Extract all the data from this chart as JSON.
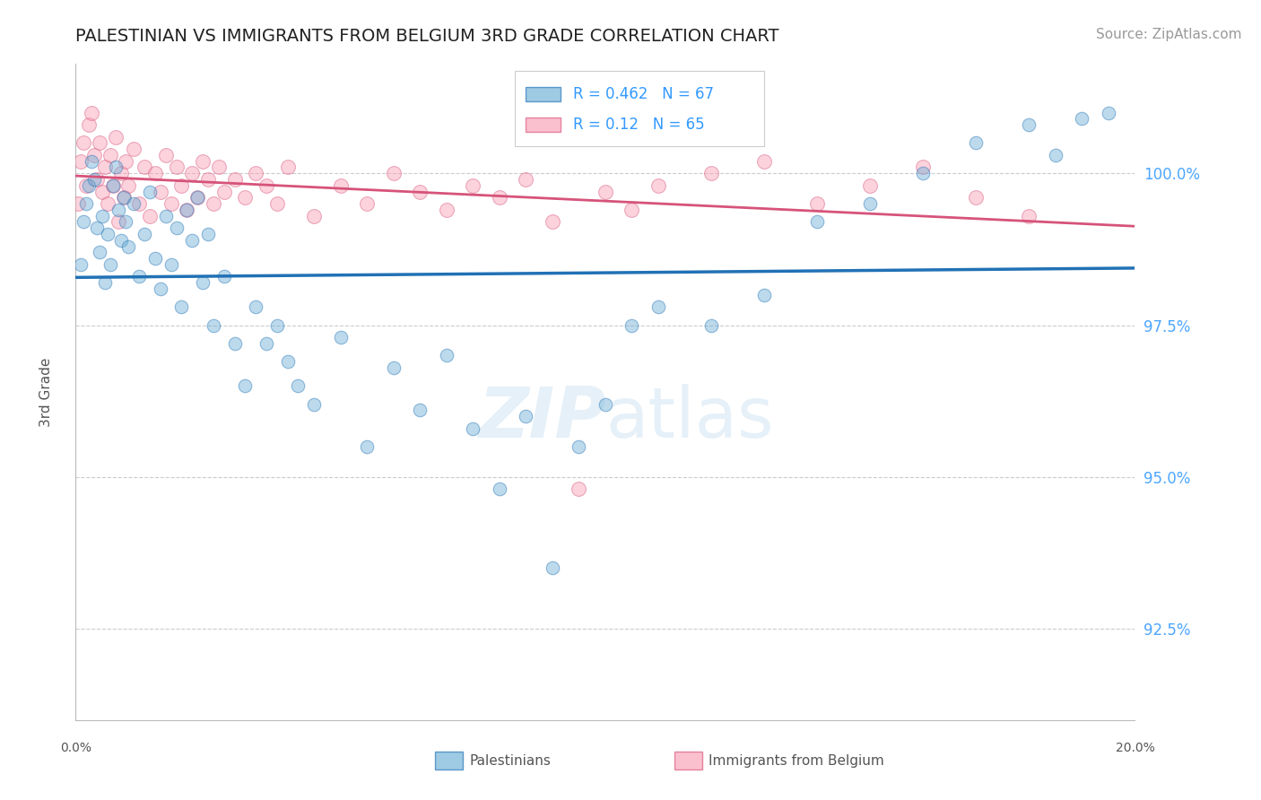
{
  "title": "PALESTINIAN VS IMMIGRANTS FROM BELGIUM 3RD GRADE CORRELATION CHART",
  "source": "Source: ZipAtlas.com",
  "ylabel": "3rd Grade",
  "yticks": [
    92.5,
    95.0,
    97.5,
    100.0
  ],
  "ytick_labels": [
    "92.5%",
    "95.0%",
    "97.5%",
    "100.0%"
  ],
  "xlim": [
    0.0,
    20.0
  ],
  "ylim": [
    91.0,
    101.8
  ],
  "blue_R": 0.462,
  "blue_N": 67,
  "pink_R": 0.12,
  "pink_N": 65,
  "blue_color": "#6baed6",
  "pink_color": "#fa9fb5",
  "blue_line_color": "#2171b5",
  "pink_line_color": "#d6537a",
  "title_color": "#222222",
  "title_fontsize": 14,
  "source_color": "#999999",
  "source_fontsize": 11,
  "axis_label_color": "#555555",
  "ytick_color": "#4da6ff",
  "legend_text_color": "#3399ff",
  "background_color": "#ffffff",
  "grid_color": "#cccccc",
  "watermark_color": "#c8dff0",
  "watermark_alpha": 0.45,
  "blue_x": [
    0.1,
    0.15,
    0.2,
    0.25,
    0.3,
    0.35,
    0.4,
    0.45,
    0.5,
    0.55,
    0.6,
    0.65,
    0.7,
    0.75,
    0.8,
    0.85,
    0.9,
    0.95,
    1.0,
    1.1,
    1.2,
    1.3,
    1.4,
    1.5,
    1.6,
    1.7,
    1.8,
    1.9,
    2.0,
    2.1,
    2.2,
    2.3,
    2.4,
    2.5,
    2.6,
    2.8,
    3.0,
    3.2,
    3.4,
    3.6,
    3.8,
    4.0,
    4.2,
    4.5,
    5.0,
    5.5,
    6.0,
    6.5,
    7.0,
    7.5,
    8.0,
    8.5,
    9.0,
    9.5,
    10.0,
    10.5,
    11.0,
    12.0,
    13.0,
    14.0,
    15.0,
    16.0,
    17.0,
    18.0,
    18.5,
    19.0,
    19.5
  ],
  "blue_y": [
    98.5,
    99.2,
    99.5,
    99.8,
    100.2,
    99.9,
    99.1,
    98.7,
    99.3,
    98.2,
    99.0,
    98.5,
    99.8,
    100.1,
    99.4,
    98.9,
    99.6,
    99.2,
    98.8,
    99.5,
    98.3,
    99.0,
    99.7,
    98.6,
    98.1,
    99.3,
    98.5,
    99.1,
    97.8,
    99.4,
    98.9,
    99.6,
    98.2,
    99.0,
    97.5,
    98.3,
    97.2,
    96.5,
    97.8,
    97.2,
    97.5,
    96.9,
    96.5,
    96.2,
    97.3,
    95.5,
    96.8,
    96.1,
    97.0,
    95.8,
    94.8,
    96.0,
    93.5,
    95.5,
    96.2,
    97.5,
    97.8,
    97.5,
    98.0,
    99.2,
    99.5,
    100.0,
    100.5,
    100.8,
    100.3,
    100.9,
    101.0
  ],
  "pink_x": [
    0.05,
    0.1,
    0.15,
    0.2,
    0.25,
    0.3,
    0.35,
    0.4,
    0.45,
    0.5,
    0.55,
    0.6,
    0.65,
    0.7,
    0.75,
    0.8,
    0.85,
    0.9,
    0.95,
    1.0,
    1.1,
    1.2,
    1.3,
    1.4,
    1.5,
    1.6,
    1.7,
    1.8,
    1.9,
    2.0,
    2.1,
    2.2,
    2.3,
    2.4,
    2.5,
    2.6,
    2.7,
    2.8,
    3.0,
    3.2,
    3.4,
    3.6,
    3.8,
    4.0,
    4.5,
    5.0,
    5.5,
    6.0,
    6.5,
    7.0,
    7.5,
    8.0,
    8.5,
    9.0,
    9.5,
    10.0,
    10.5,
    11.0,
    12.0,
    13.0,
    14.0,
    15.0,
    16.0,
    17.0,
    18.0
  ],
  "pink_y": [
    99.5,
    100.2,
    100.5,
    99.8,
    100.8,
    101.0,
    100.3,
    99.9,
    100.5,
    99.7,
    100.1,
    99.5,
    100.3,
    99.8,
    100.6,
    99.2,
    100.0,
    99.6,
    100.2,
    99.8,
    100.4,
    99.5,
    100.1,
    99.3,
    100.0,
    99.7,
    100.3,
    99.5,
    100.1,
    99.8,
    99.4,
    100.0,
    99.6,
    100.2,
    99.9,
    99.5,
    100.1,
    99.7,
    99.9,
    99.6,
    100.0,
    99.8,
    99.5,
    100.1,
    99.3,
    99.8,
    99.5,
    100.0,
    99.7,
    99.4,
    99.8,
    99.6,
    99.9,
    99.2,
    94.8,
    99.7,
    99.4,
    99.8,
    100.0,
    100.2,
    99.5,
    99.8,
    100.1,
    99.6,
    99.3
  ]
}
